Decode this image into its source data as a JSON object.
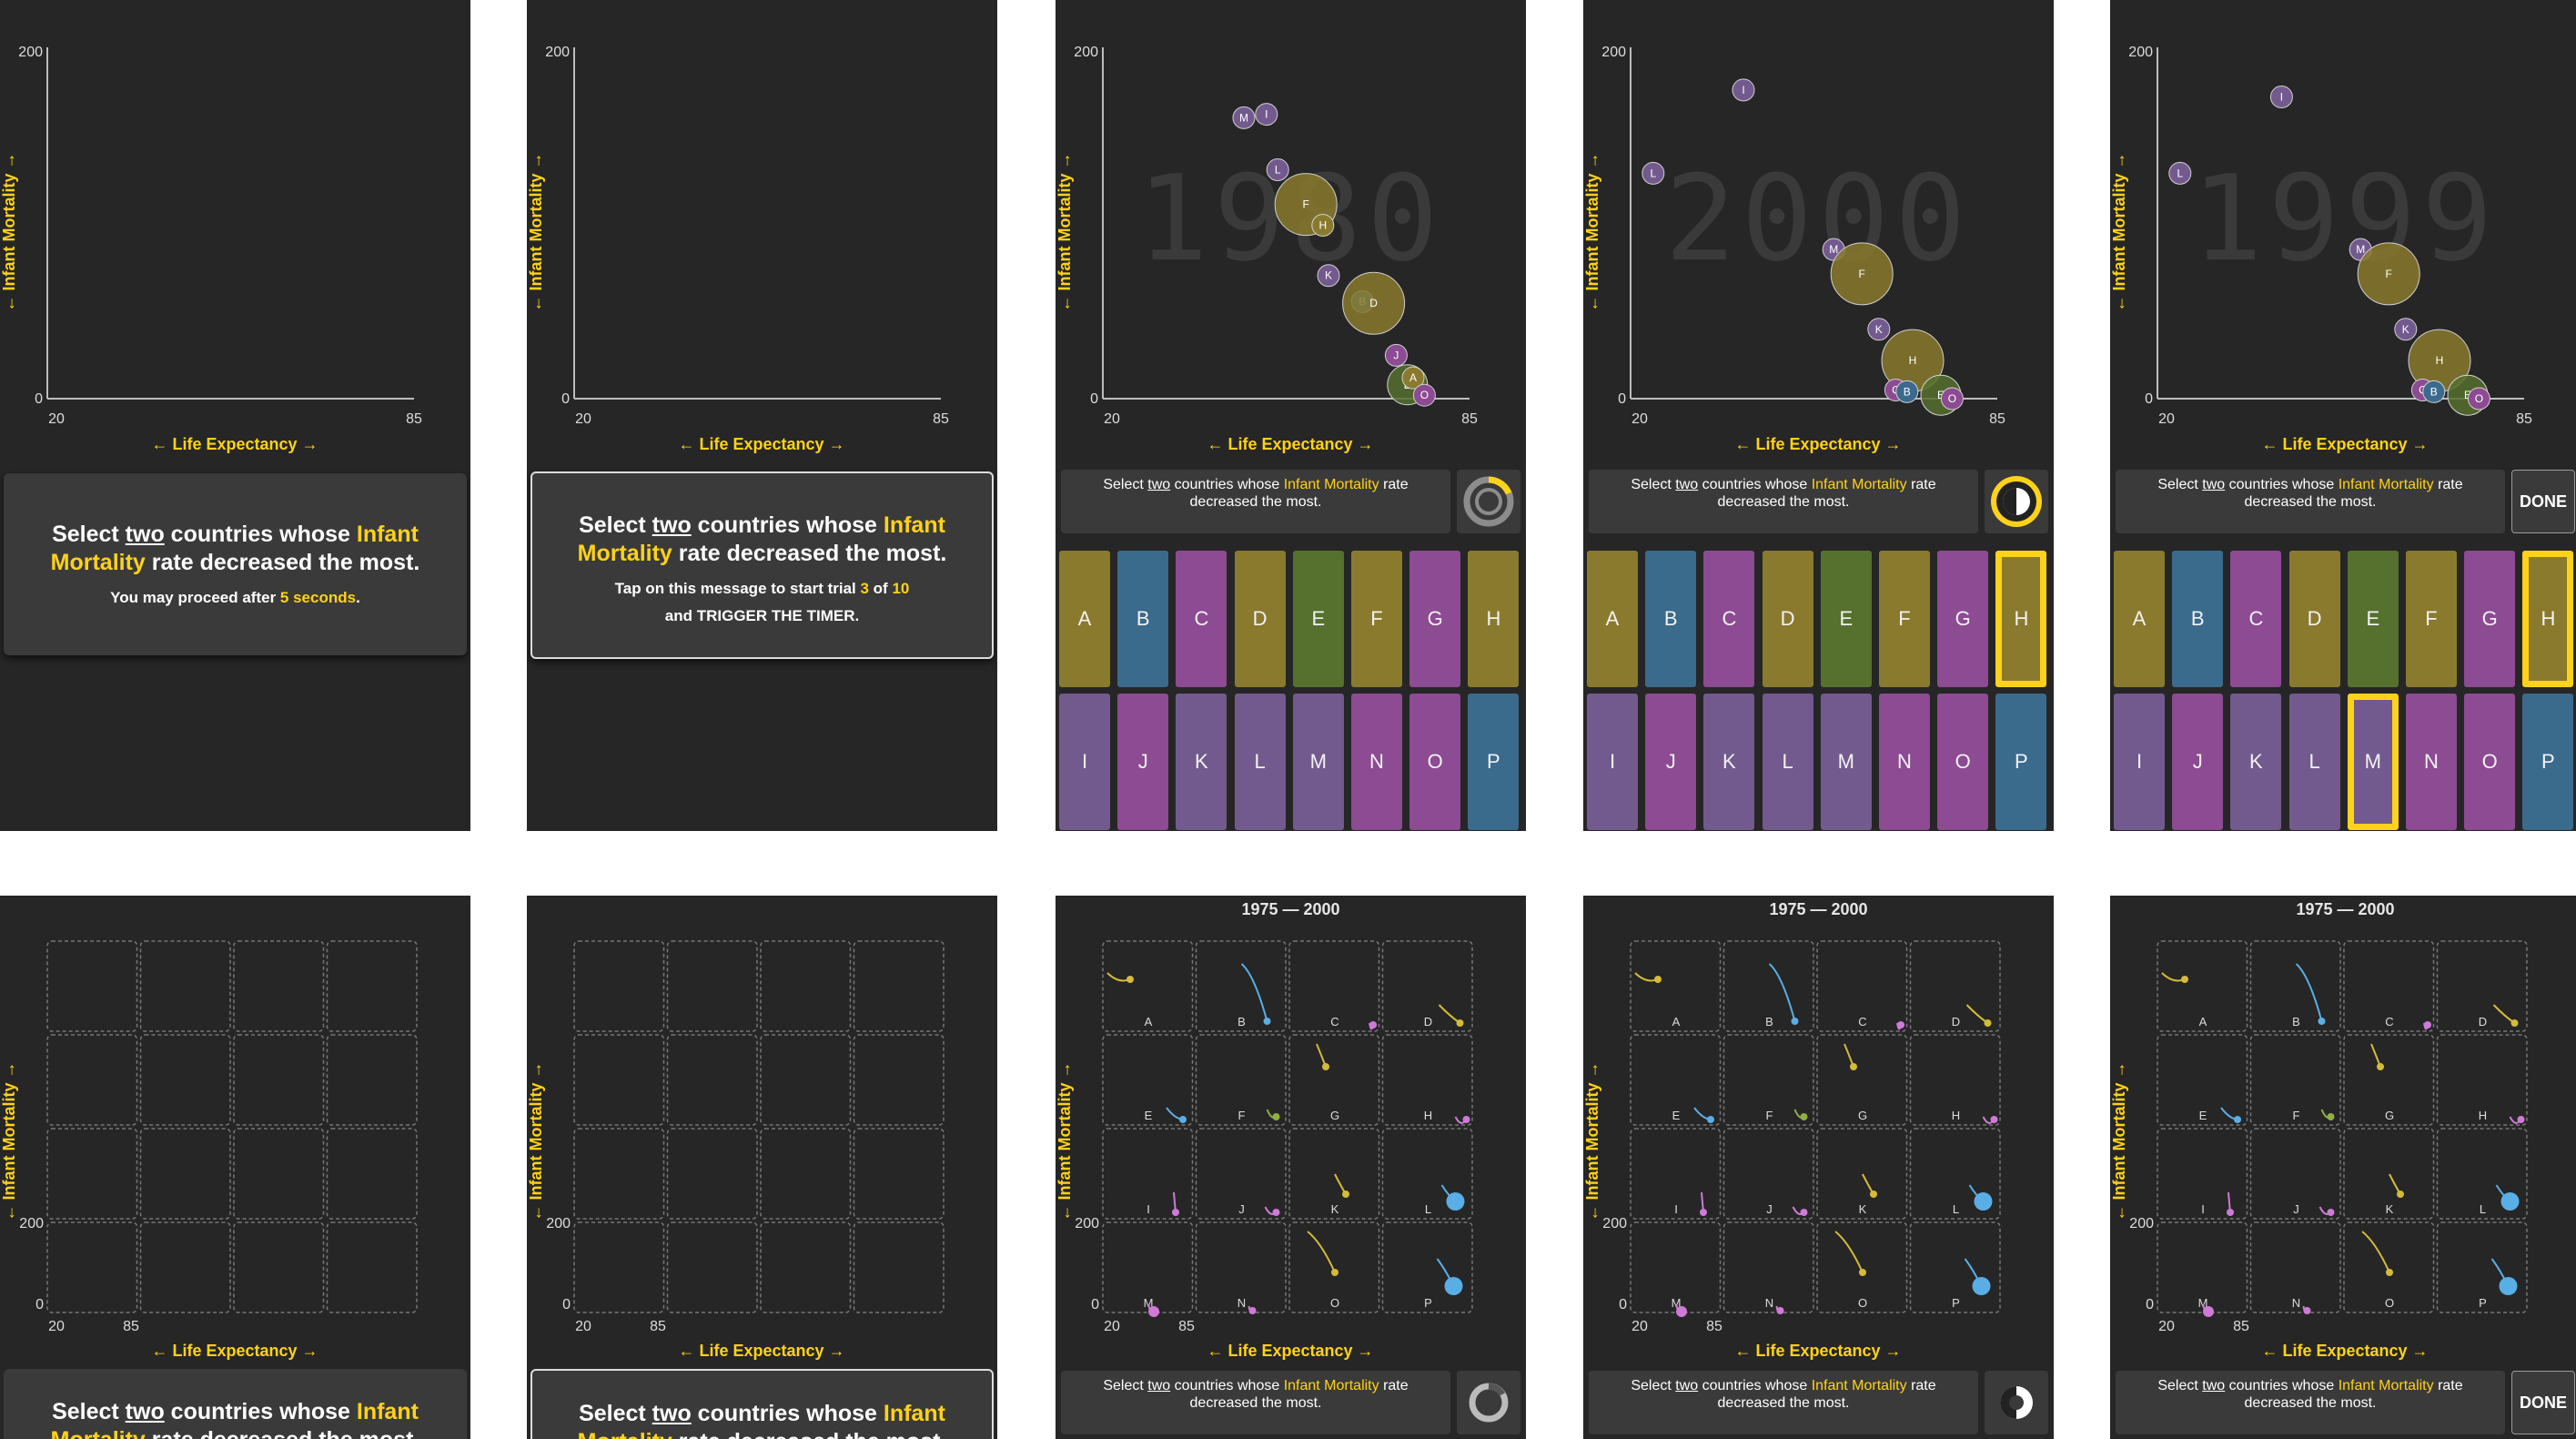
{
  "axes": {
    "y_label": "← Infant Mortality →",
    "x_label": "← Life Expectancy →",
    "y_max": "200",
    "y_min": "0",
    "x_min": "20",
    "x_max": "85"
  },
  "task": {
    "prefix": "Select ",
    "two": "two",
    "middle": " countries whose ",
    "metric": "Infant Mortality",
    "suffix": " rate decreased the most."
  },
  "intro": {
    "proceed_prefix": "You may proceed after ",
    "proceed_value": "5 seconds",
    "proceed_suffix": "."
  },
  "trial": {
    "tap_prefix": "Tap on this message to start trial ",
    "current": "3",
    "of": " of ",
    "total": "10",
    "trigger": "and TRIGGER THE TIMER."
  },
  "years": [
    "1980",
    "2000",
    "1999"
  ],
  "range_title": "1975 — 2000",
  "done_label": "DONE",
  "colors": {
    "gold": "#8a7a2e",
    "blue": "#3a6a8c",
    "magenta": "#8c4b92",
    "purple": "#735a8e",
    "green": "#56702e",
    "highlight": "#ffd21a"
  },
  "countries": [
    {
      "label": "A",
      "color": "gold"
    },
    {
      "label": "B",
      "color": "blue"
    },
    {
      "label": "C",
      "color": "magenta"
    },
    {
      "label": "D",
      "color": "gold"
    },
    {
      "label": "E",
      "color": "green"
    },
    {
      "label": "F",
      "color": "gold"
    },
    {
      "label": "G",
      "color": "magenta"
    },
    {
      "label": "H",
      "color": "gold"
    },
    {
      "label": "I",
      "color": "purple"
    },
    {
      "label": "J",
      "color": "magenta"
    },
    {
      "label": "K",
      "color": "purple"
    },
    {
      "label": "L",
      "color": "purple"
    },
    {
      "label": "M",
      "color": "purple"
    },
    {
      "label": "N",
      "color": "magenta"
    },
    {
      "label": "O",
      "color": "magenta"
    },
    {
      "label": "P",
      "color": "blue"
    }
  ],
  "selections": {
    "panel4": [
      "H"
    ],
    "panel5": [
      "H",
      "M"
    ]
  },
  "chart_data": [
    {
      "type": "scatter",
      "year": "1980",
      "xlabel": "← Life Expectancy →",
      "ylabel": "← Infant Mortality →",
      "xlim": [
        20,
        85
      ],
      "ylim": [
        0,
        200
      ],
      "points": [
        {
          "label": "M",
          "x": 45,
          "y": 162,
          "color": "purple"
        },
        {
          "label": "I",
          "x": 49,
          "y": 164,
          "color": "purple"
        },
        {
          "label": "L",
          "x": 51,
          "y": 132,
          "color": "purple"
        },
        {
          "label": "F",
          "x": 56,
          "y": 112,
          "color": "gold",
          "size": "large"
        },
        {
          "label": "H",
          "x": 59,
          "y": 100,
          "color": "gold"
        },
        {
          "label": "K",
          "x": 60,
          "y": 71,
          "color": "purple"
        },
        {
          "label": "B",
          "x": 66,
          "y": 56,
          "color": "blue"
        },
        {
          "label": "D",
          "x": 68,
          "y": 55,
          "color": "gold",
          "size": "large"
        },
        {
          "label": "J",
          "x": 72,
          "y": 25,
          "color": "magenta"
        },
        {
          "label": "E",
          "x": 74,
          "y": 8,
          "color": "green",
          "size": "medium"
        },
        {
          "label": "A",
          "x": 75,
          "y": 12,
          "color": "gold"
        },
        {
          "label": "O",
          "x": 77,
          "y": 2,
          "color": "magenta"
        }
      ]
    },
    {
      "type": "scatter",
      "year": "2000",
      "xlabel": "← Life Expectancy →",
      "ylabel": "← Infant Mortality →",
      "xlim": [
        20,
        85
      ],
      "ylim": [
        0,
        200
      ],
      "points": [
        {
          "label": "L",
          "x": 24,
          "y": 130,
          "color": "purple"
        },
        {
          "label": "I",
          "x": 40,
          "y": 178,
          "color": "purple"
        },
        {
          "label": "M",
          "x": 56,
          "y": 86,
          "color": "purple"
        },
        {
          "label": "F",
          "x": 61,
          "y": 72,
          "color": "gold",
          "size": "large"
        },
        {
          "label": "K",
          "x": 64,
          "y": 40,
          "color": "purple"
        },
        {
          "label": "H",
          "x": 70,
          "y": 22,
          "color": "gold",
          "size": "large"
        },
        {
          "label": "C",
          "x": 67,
          "y": 5,
          "color": "magenta"
        },
        {
          "label": "B",
          "x": 69,
          "y": 4,
          "color": "blue"
        },
        {
          "label": "E",
          "x": 75,
          "y": 2,
          "color": "green",
          "size": "medium"
        },
        {
          "label": "O",
          "x": 77,
          "y": 0,
          "color": "magenta"
        }
      ]
    },
    {
      "type": "scatter",
      "year": "1999",
      "xlabel": "← Life Expectancy →",
      "ylabel": "← Infant Mortality →",
      "xlim": [
        20,
        85
      ],
      "ylim": [
        0,
        200
      ],
      "points": [
        {
          "label": "L",
          "x": 24,
          "y": 130,
          "color": "purple"
        },
        {
          "label": "I",
          "x": 42,
          "y": 174,
          "color": "purple"
        },
        {
          "label": "M",
          "x": 56,
          "y": 86,
          "color": "purple"
        },
        {
          "label": "F",
          "x": 61,
          "y": 72,
          "color": "gold",
          "size": "large"
        },
        {
          "label": "K",
          "x": 64,
          "y": 40,
          "color": "purple"
        },
        {
          "label": "H",
          "x": 70,
          "y": 22,
          "color": "gold",
          "size": "large"
        },
        {
          "label": "C",
          "x": 67,
          "y": 5,
          "color": "magenta"
        },
        {
          "label": "B",
          "x": 69,
          "y": 4,
          "color": "blue"
        },
        {
          "label": "E",
          "x": 75,
          "y": 2,
          "color": "green",
          "size": "medium"
        },
        {
          "label": "O",
          "x": 77,
          "y": 0,
          "color": "magenta"
        }
      ]
    }
  ],
  "small_multiples": {
    "type": "line",
    "title": "1975 — 2000",
    "cells": [
      {
        "label": "A",
        "color": "gold"
      },
      {
        "label": "B",
        "color": "blue"
      },
      {
        "label": "C",
        "color": "magenta"
      },
      {
        "label": "D",
        "color": "gold"
      },
      {
        "label": "E",
        "color": "blue"
      },
      {
        "label": "F",
        "color": "green"
      },
      {
        "label": "G",
        "color": "gold"
      },
      {
        "label": "H",
        "color": "magenta"
      },
      {
        "label": "I",
        "color": "magenta"
      },
      {
        "label": "J",
        "color": "magenta"
      },
      {
        "label": "K",
        "color": "gold"
      },
      {
        "label": "L",
        "color": "blue"
      },
      {
        "label": "M",
        "color": "magenta"
      },
      {
        "label": "N",
        "color": "magenta"
      },
      {
        "label": "O",
        "color": "gold"
      },
      {
        "label": "P",
        "color": "blue"
      }
    ]
  }
}
